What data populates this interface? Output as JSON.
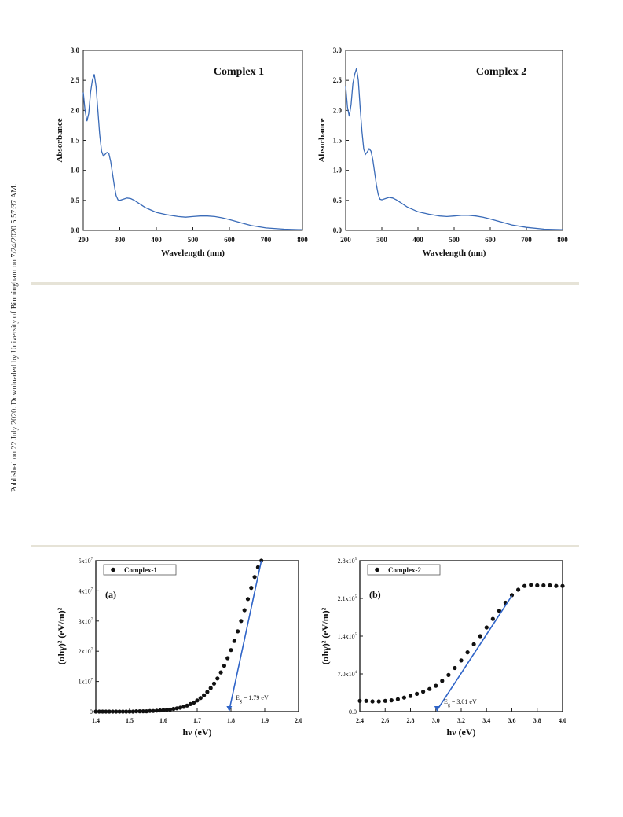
{
  "side_note": "Published on 22 July 2020. Downloaded by University of Birmingham on 7/24/2020 5:57:37 AM.",
  "colors": {
    "uv_line": "#3a6bb8",
    "marker": "#111111",
    "fit_line": "#2f64c8",
    "rule": "#e6e3d7"
  },
  "chart_data": [
    {
      "type": "line",
      "title": "Complex 1",
      "xlabel": "Wavelength (nm)",
      "ylabel": "Absorbance",
      "xlim": [
        200,
        800
      ],
      "ylim": [
        0,
        3.0
      ],
      "xticks": [
        "200",
        "300",
        "400",
        "500",
        "600",
        "700",
        "800"
      ],
      "yticks": [
        "0.0",
        "0.5",
        "1.0",
        "1.5",
        "2.0",
        "2.5",
        "3.0"
      ],
      "x": [
        200,
        205,
        210,
        215,
        220,
        225,
        230,
        235,
        240,
        245,
        250,
        255,
        260,
        265,
        270,
        275,
        280,
        285,
        290,
        295,
        300,
        310,
        320,
        330,
        340,
        350,
        370,
        400,
        430,
        460,
        480,
        500,
        520,
        540,
        560,
        580,
        600,
        630,
        660,
        700,
        750,
        800
      ],
      "y": [
        2.3,
        2.0,
        1.82,
        1.95,
        2.3,
        2.5,
        2.6,
        2.4,
        2.0,
        1.6,
        1.32,
        1.24,
        1.27,
        1.3,
        1.28,
        1.15,
        0.95,
        0.75,
        0.58,
        0.51,
        0.5,
        0.52,
        0.54,
        0.53,
        0.5,
        0.46,
        0.38,
        0.3,
        0.26,
        0.23,
        0.22,
        0.23,
        0.24,
        0.24,
        0.23,
        0.21,
        0.18,
        0.13,
        0.08,
        0.04,
        0.02,
        0.01
      ]
    },
    {
      "type": "line",
      "title": "Complex 2",
      "xlabel": "Wavelength (nm)",
      "ylabel": "Absorbance",
      "xlim": [
        200,
        800
      ],
      "ylim": [
        0,
        3.0
      ],
      "xticks": [
        "200",
        "300",
        "400",
        "500",
        "600",
        "700",
        "800"
      ],
      "yticks": [
        "0.0",
        "0.5",
        "1.0",
        "1.5",
        "2.0",
        "2.5",
        "3.0"
      ],
      "x": [
        200,
        205,
        210,
        215,
        220,
        225,
        230,
        235,
        240,
        245,
        250,
        255,
        260,
        265,
        270,
        275,
        280,
        285,
        290,
        295,
        300,
        310,
        320,
        330,
        340,
        350,
        370,
        400,
        430,
        460,
        480,
        500,
        520,
        540,
        560,
        580,
        600,
        630,
        660,
        700,
        750,
        800
      ],
      "y": [
        2.4,
        2.05,
        1.9,
        2.1,
        2.45,
        2.6,
        2.7,
        2.5,
        2.05,
        1.65,
        1.35,
        1.27,
        1.31,
        1.36,
        1.32,
        1.18,
        0.97,
        0.76,
        0.6,
        0.52,
        0.51,
        0.53,
        0.55,
        0.54,
        0.51,
        0.47,
        0.39,
        0.31,
        0.27,
        0.24,
        0.23,
        0.24,
        0.25,
        0.25,
        0.24,
        0.22,
        0.19,
        0.14,
        0.09,
        0.05,
        0.02,
        0.01
      ]
    },
    {
      "type": "scatter",
      "panel_label": "(a)",
      "legend": "Complex-1",
      "legend_position": "top-left",
      "xlabel": "hν (eV)",
      "ylabel": "(αhγ)² (eV/m)²",
      "xlim": [
        1.4,
        2.0
      ],
      "ylim": [
        0,
        5
      ],
      "y_exponent": "7",
      "xticks": [
        "1.4",
        "1.5",
        "1.6",
        "1.7",
        "1.8",
        "1.9",
        "2.0"
      ],
      "yticks": [
        "0",
        "1x10",
        "2x10",
        "3x10",
        "4x10",
        "5x10"
      ],
      "x": [
        1.4,
        1.41,
        1.42,
        1.43,
        1.44,
        1.45,
        1.46,
        1.47,
        1.48,
        1.49,
        1.5,
        1.51,
        1.52,
        1.53,
        1.54,
        1.55,
        1.56,
        1.57,
        1.58,
        1.59,
        1.6,
        1.61,
        1.62,
        1.63,
        1.64,
        1.65,
        1.66,
        1.67,
        1.68,
        1.69,
        1.7,
        1.71,
        1.72,
        1.73,
        1.74,
        1.75,
        1.76,
        1.77,
        1.78,
        1.79,
        1.8,
        1.81,
        1.82,
        1.83,
        1.84,
        1.85,
        1.86,
        1.87,
        1.88,
        1.89
      ],
      "y": [
        0.0,
        0.0,
        0.0,
        0.0,
        0.0,
        0.0,
        0.0,
        0.0,
        0.0,
        0.0,
        0.0,
        0.0,
        0.01,
        0.01,
        0.01,
        0.01,
        0.02,
        0.02,
        0.03,
        0.04,
        0.05,
        0.06,
        0.07,
        0.09,
        0.11,
        0.13,
        0.16,
        0.2,
        0.25,
        0.3,
        0.37,
        0.45,
        0.54,
        0.65,
        0.78,
        0.93,
        1.1,
        1.3,
        1.52,
        1.77,
        2.04,
        2.34,
        2.66,
        3.0,
        3.36,
        3.73,
        4.1,
        4.46,
        4.78,
        5.0
      ],
      "fit_line": {
        "x": [
          1.795,
          1.89
        ],
        "y": [
          0.0,
          5.0
        ]
      },
      "annotation": {
        "label": "E",
        "sub": "g",
        "value": "= 1.79 eV"
      }
    },
    {
      "type": "scatter",
      "panel_label": "(b)",
      "legend": "Complex-2",
      "legend_position": "top-left",
      "xlabel": "hν (eV)",
      "ylabel": "(αhγ)² (eV/m)²",
      "xlim": [
        2.4,
        4.0
      ],
      "ylim": [
        0,
        2.8
      ],
      "y_exponent": "5",
      "xticks": [
        "2.4",
        "2.6",
        "2.8",
        "3.0",
        "3.2",
        "3.4",
        "3.6",
        "3.8",
        "4.0"
      ],
      "yticks": [
        "0.0",
        "7.0x10",
        "1.4x10",
        "2.1x10",
        "2.8x10"
      ],
      "ytick_exponents": [
        "",
        "4",
        "5",
        "5",
        "5"
      ],
      "x": [
        2.4,
        2.45,
        2.5,
        2.55,
        2.6,
        2.65,
        2.7,
        2.75,
        2.8,
        2.85,
        2.9,
        2.95,
        3.0,
        3.05,
        3.1,
        3.15,
        3.2,
        3.25,
        3.3,
        3.35,
        3.4,
        3.45,
        3.5,
        3.55,
        3.6,
        3.65,
        3.7,
        3.75,
        3.8,
        3.85,
        3.9,
        3.95,
        4.0
      ],
      "y": [
        0.2,
        0.2,
        0.19,
        0.19,
        0.2,
        0.21,
        0.23,
        0.26,
        0.29,
        0.33,
        0.37,
        0.42,
        0.48,
        0.57,
        0.68,
        0.81,
        0.95,
        1.1,
        1.25,
        1.4,
        1.56,
        1.72,
        1.87,
        2.02,
        2.16,
        2.26,
        2.33,
        2.35,
        2.34,
        2.34,
        2.34,
        2.33,
        2.33
      ],
      "fit_line": {
        "x": [
          3.01,
          3.6
        ],
        "y": [
          0.0,
          2.15
        ]
      },
      "annotation": {
        "label": "E",
        "sub": "g",
        "value": "= 3.01 eV"
      }
    }
  ]
}
